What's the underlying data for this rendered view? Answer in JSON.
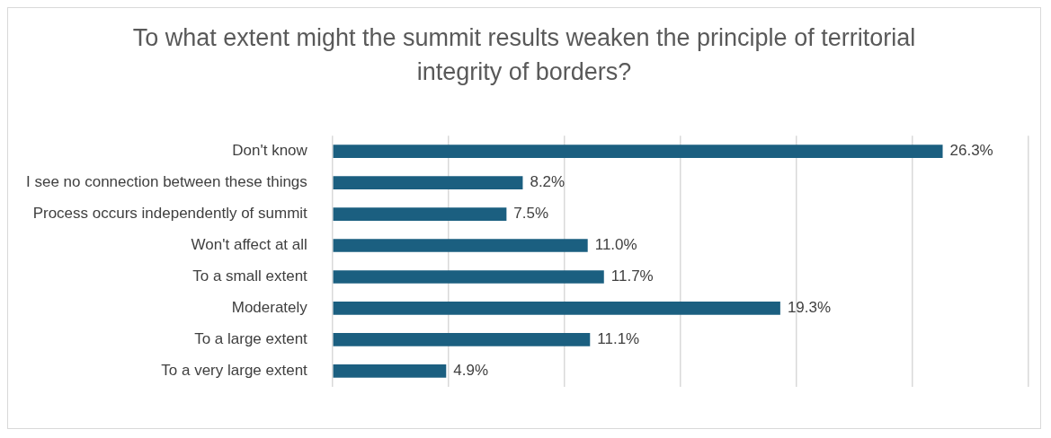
{
  "chart_data": {
    "type": "bar",
    "orientation": "horizontal",
    "title": "To what extent might the summit results weaken the principle of territorial integrity of borders?",
    "categories": [
      "Don't know",
      "I see no connection between these things",
      "Process occurs independently of summit",
      "Won't affect at all",
      "To a small extent",
      "Moderately",
      "To a large extent",
      "To a very large extent"
    ],
    "values": [
      26.3,
      8.2,
      7.5,
      11.0,
      11.7,
      19.3,
      11.1,
      4.9
    ],
    "value_labels": [
      "26.3%",
      "8.2%",
      "7.5%",
      "11.0%",
      "11.7%",
      "19.3%",
      "11.1%",
      "4.9%"
    ],
    "color": "#1b5f80",
    "xlim": [
      0,
      30
    ],
    "xticks": [
      {
        "value": 0,
        "label": null
      },
      {
        "value": 5,
        "label": null
      },
      {
        "value": 10,
        "label": null
      },
      {
        "value": 15,
        "label": null
      },
      {
        "value": 20,
        "label": null
      },
      {
        "value": 25,
        "label": null
      },
      {
        "value": 30,
        "label": null
      }
    ],
    "tick_labels": "y",
    "grid": "x",
    "legend": false
  }
}
